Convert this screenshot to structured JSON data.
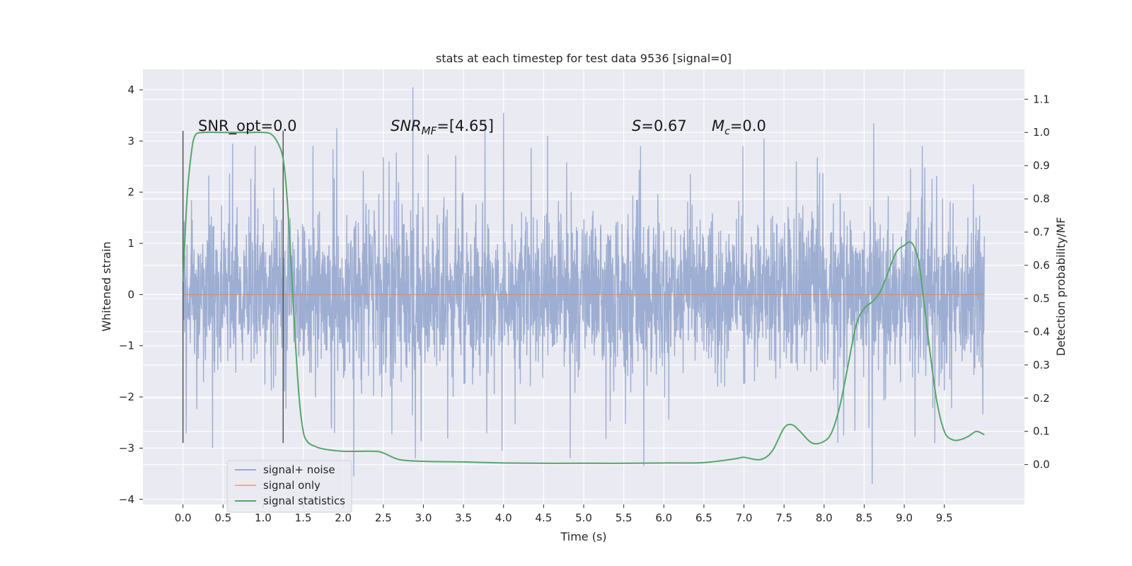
{
  "chart_data": {
    "type": "line",
    "title": "stats at each timestep for test data 9536 [signal=0]",
    "xlabel": "Time (s)",
    "ylabel": "Whitened strain",
    "y2label": "Detection probability/MF",
    "xlim": [
      -0.5,
      10.5
    ],
    "ylim": [
      -4.1,
      4.4
    ],
    "y2lim": [
      -0.12,
      1.19
    ],
    "x_ticks": [
      0.0,
      0.5,
      1.0,
      1.5,
      2.0,
      2.5,
      3.0,
      3.5,
      4.0,
      4.5,
      5.0,
      5.5,
      6.0,
      6.5,
      7.0,
      7.5,
      8.0,
      8.5,
      9.0,
      9.5
    ],
    "x_tick_labels": [
      "0.0",
      "0.5",
      "1.0",
      "1.5",
      "2.0",
      "2.5",
      "3.0",
      "3.5",
      "4.0",
      "4.5",
      "5.0",
      "5.5",
      "6.0",
      "6.5",
      "7.0",
      "7.5",
      "8.0",
      "8.5",
      "9.0",
      "9.5"
    ],
    "y_ticks": [
      -4,
      -3,
      -2,
      -1,
      0,
      1,
      2,
      3,
      4
    ],
    "y_tick_labels": [
      "−4",
      "−3",
      "−2",
      "−1",
      "0",
      "1",
      "2",
      "3",
      "4"
    ],
    "y2_ticks": [
      0.0,
      0.1,
      0.2,
      0.3,
      0.4,
      0.5,
      0.6,
      0.7,
      0.8,
      0.9,
      1.0,
      1.1
    ],
    "y2_tick_labels": [
      "0.0",
      "0.1",
      "0.2",
      "0.3",
      "0.4",
      "0.5",
      "0.6",
      "0.7",
      "0.8",
      "0.9",
      "1.0",
      "1.1"
    ],
    "grid": true,
    "legend_position": "bottom-left",
    "legend": [
      "signal+ noise",
      "signal only",
      "signal statistics"
    ],
    "annotations": {
      "snr_opt": "SNR_opt=0.0",
      "snr_mf_base": "SNR",
      "snr_mf_sub": "MF",
      "snr_mf_value": "=[4.65]",
      "s_symbol": "S",
      "s_value": "=0.67",
      "mc_symbol": "M",
      "mc_sub": "c",
      "mc_value": "=0.0"
    },
    "vertical_markers_x": [
      0.0,
      1.25
    ],
    "vertical_markers_y_range": [
      -2.9,
      3.2
    ],
    "series": [
      {
        "name": "signal+ noise",
        "color": "#9aabd0",
        "x_range": [
          0.0,
          10.0
        ],
        "typical_amplitude": 1.4,
        "envelope_max": 4.05,
        "envelope_min": -3.7,
        "peaks": [
          {
            "x": 2.87,
            "y": 4.05
          },
          {
            "x": 4.0,
            "y": 3.55
          },
          {
            "x": 3.77,
            "y": 3.4
          },
          {
            "x": 1.92,
            "y": 3.25
          },
          {
            "x": 7.25,
            "y": 3.05
          },
          {
            "x": 8.62,
            "y": 3.35
          },
          {
            "x": 4.55,
            "y": 3.1
          },
          {
            "x": 0.62,
            "y": 2.95
          }
        ],
        "troughs": [
          {
            "x": 2.9,
            "y": -3.2
          },
          {
            "x": 0.37,
            "y": -3.0
          },
          {
            "x": 2.13,
            "y": -3.55
          },
          {
            "x": 4.83,
            "y": -3.2
          },
          {
            "x": 5.75,
            "y": -3.35
          },
          {
            "x": 8.6,
            "y": -3.7
          },
          {
            "x": 9.38,
            "y": -2.9
          },
          {
            "x": 3.98,
            "y": -3.05
          }
        ]
      },
      {
        "name": "signal only",
        "color": "#dd8452",
        "x": [
          0.0,
          10.0
        ],
        "y": [
          0.0,
          0.0
        ]
      },
      {
        "name": "signal statistics",
        "color": "#55a868",
        "axis": "right",
        "x": [
          0.0,
          0.05,
          0.1,
          0.15,
          0.25,
          0.5,
          0.8,
          1.0,
          1.1,
          1.18,
          1.25,
          1.3,
          1.35,
          1.4,
          1.45,
          1.5,
          1.55,
          1.6,
          1.65,
          1.7,
          1.8,
          2.0,
          2.2,
          2.4,
          2.5,
          2.7,
          3.0,
          3.5,
          4.0,
          4.5,
          5.0,
          5.5,
          6.0,
          6.5,
          6.9,
          7.0,
          7.2,
          7.35,
          7.5,
          7.6,
          7.7,
          7.85,
          8.0,
          8.1,
          8.2,
          8.3,
          8.4,
          8.5,
          8.6,
          8.7,
          8.8,
          8.9,
          9.0,
          9.08,
          9.15,
          9.2,
          9.3,
          9.4,
          9.5,
          9.6,
          9.7,
          9.8,
          9.9,
          10.0
        ],
        "y": [
          0.55,
          0.8,
          0.93,
          0.99,
          1.0,
          1.0,
          1.0,
          1.0,
          0.995,
          0.97,
          0.92,
          0.8,
          0.6,
          0.38,
          0.2,
          0.1,
          0.07,
          0.06,
          0.055,
          0.05,
          0.045,
          0.04,
          0.04,
          0.04,
          0.035,
          0.015,
          0.01,
          0.008,
          0.005,
          0.004,
          0.004,
          0.004,
          0.005,
          0.006,
          0.018,
          0.022,
          0.015,
          0.04,
          0.11,
          0.12,
          0.1,
          0.065,
          0.07,
          0.1,
          0.18,
          0.3,
          0.42,
          0.47,
          0.49,
          0.52,
          0.58,
          0.64,
          0.66,
          0.67,
          0.64,
          0.58,
          0.38,
          0.2,
          0.1,
          0.075,
          0.075,
          0.085,
          0.1,
          0.09
        ]
      }
    ]
  }
}
